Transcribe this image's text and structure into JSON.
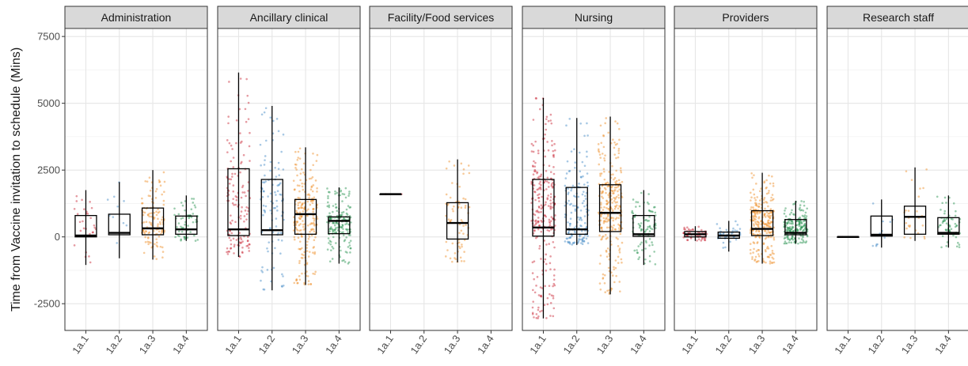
{
  "chart_data": {
    "type": "box",
    "ylabel": "Time from Vaccine invitation to schedule (Mins)",
    "xlabel": "",
    "ylim": [
      -3500,
      7800
    ],
    "yticks": [
      -2500,
      0,
      2500,
      5000,
      7500
    ],
    "ytick_labels": [
      "-2500",
      "0",
      "2500",
      "5000",
      "7500"
    ],
    "categories": [
      "1a.1",
      "1a.2",
      "1a.3",
      "1a.4"
    ],
    "category_colors": {
      "1a.1": "#c8202f",
      "1a.2": "#3b84c4",
      "1a.3": "#ee8a1f",
      "1a.4": "#1f8f4a"
    },
    "grid": true,
    "legend": "none",
    "panels": [
      {
        "title": "Administration",
        "boxes": [
          {
            "category": "1a.1",
            "min": -1050,
            "q1": 0,
            "median": 50,
            "q3": 800,
            "max": 1750,
            "n": 28
          },
          {
            "category": "1a.2",
            "min": -800,
            "q1": 80,
            "median": 150,
            "q3": 850,
            "max": 2050,
            "n": 10
          },
          {
            "category": "1a.3",
            "min": -850,
            "q1": 80,
            "median": 320,
            "q3": 1080,
            "max": 2500,
            "n": 120
          },
          {
            "category": "1a.4",
            "min": -150,
            "q1": 100,
            "median": 280,
            "q3": 780,
            "max": 1550,
            "n": 60
          }
        ]
      },
      {
        "title": "Ancillary clinical",
        "boxes": [
          {
            "category": "1a.1",
            "min": -750,
            "q1": 50,
            "median": 280,
            "q3": 2550,
            "max": 6150,
            "n": 140
          },
          {
            "category": "1a.2",
            "min": -2000,
            "q1": 80,
            "median": 250,
            "q3": 2150,
            "max": 4900,
            "n": 110
          },
          {
            "category": "1a.3",
            "min": -1800,
            "q1": 100,
            "median": 850,
            "q3": 1400,
            "max": 3350,
            "n": 220
          },
          {
            "category": "1a.4",
            "min": -1000,
            "q1": 120,
            "median": 600,
            "q3": 750,
            "max": 1850,
            "n": 180
          }
        ]
      },
      {
        "title": "Facility/Food services",
        "boxes": [
          {
            "category": "1a.1",
            "min": 1600,
            "q1": 1600,
            "median": 1600,
            "q3": 1600,
            "max": 1600,
            "n": 2
          },
          {
            "category": "1a.3",
            "min": -950,
            "q1": -80,
            "median": 520,
            "q3": 1280,
            "max": 2900,
            "n": 70
          }
        ]
      },
      {
        "title": "Nursing",
        "boxes": [
          {
            "category": "1a.1",
            "min": -3050,
            "q1": 30,
            "median": 350,
            "q3": 2150,
            "max": 5200,
            "n": 260
          },
          {
            "category": "1a.2",
            "min": -300,
            "q1": 100,
            "median": 280,
            "q3": 1850,
            "max": 4450,
            "n": 150
          },
          {
            "category": "1a.3",
            "min": -2150,
            "q1": 200,
            "median": 900,
            "q3": 1950,
            "max": 4500,
            "n": 280
          },
          {
            "category": "1a.4",
            "min": -1050,
            "q1": 20,
            "median": 100,
            "q3": 800,
            "max": 1750,
            "n": 90
          }
        ]
      },
      {
        "title": "Providers",
        "boxes": [
          {
            "category": "1a.1",
            "min": -150,
            "q1": 0,
            "median": 100,
            "q3": 200,
            "max": 400,
            "n": 60
          },
          {
            "category": "1a.2",
            "min": -550,
            "q1": -50,
            "median": 50,
            "q3": 180,
            "max": 600,
            "n": 40
          },
          {
            "category": "1a.3",
            "min": -1000,
            "q1": 50,
            "median": 300,
            "q3": 980,
            "max": 2400,
            "n": 260
          },
          {
            "category": "1a.4",
            "min": -250,
            "q1": 80,
            "median": 150,
            "q3": 650,
            "max": 1350,
            "n": 200
          }
        ]
      },
      {
        "title": "Research staff",
        "boxes": [
          {
            "category": "1a.1",
            "min": 0,
            "q1": 0,
            "median": 0,
            "q3": 0,
            "max": 0,
            "n": 3
          },
          {
            "category": "1a.2",
            "min": -400,
            "q1": 30,
            "median": 80,
            "q3": 780,
            "max": 1400,
            "n": 12
          },
          {
            "category": "1a.3",
            "min": -150,
            "q1": 100,
            "median": 750,
            "q3": 1150,
            "max": 2600,
            "n": 25
          },
          {
            "category": "1a.4",
            "min": -400,
            "q1": 100,
            "median": 150,
            "q3": 720,
            "max": 1550,
            "n": 60
          }
        ]
      }
    ]
  }
}
